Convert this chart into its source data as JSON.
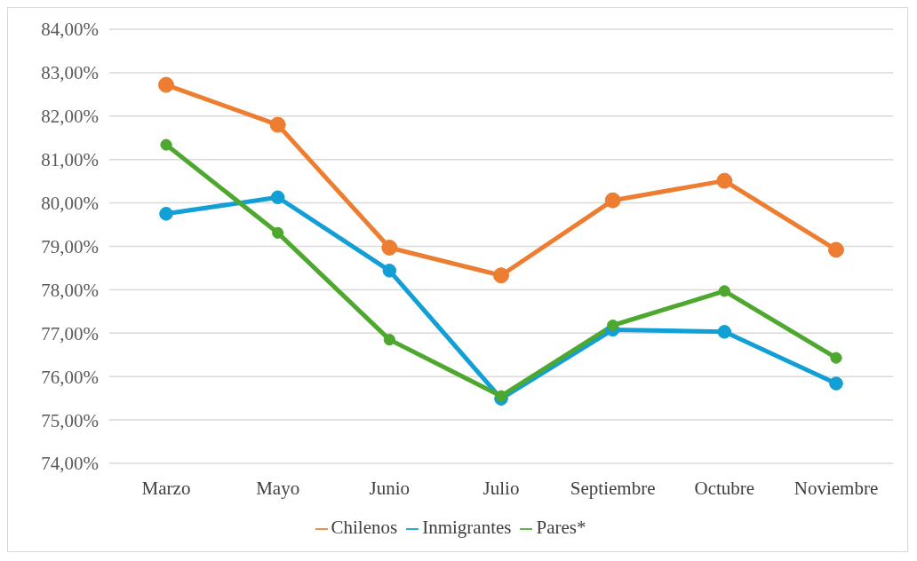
{
  "chart_data": {
    "type": "line",
    "categories": [
      "Marzo",
      "Mayo",
      "Junio",
      "Julio",
      "Septiembre",
      "Octubre",
      "Noviembre"
    ],
    "series": [
      {
        "name": "Chilenos",
        "color": "#ed7d31",
        "values": [
          82.72,
          81.8,
          78.97,
          78.33,
          80.06,
          80.51,
          78.92
        ]
      },
      {
        "name": "Inmigrantes",
        "color": "#119fd6",
        "values": [
          79.75,
          80.13,
          78.44,
          75.49,
          77.08,
          77.03,
          75.84
        ]
      },
      {
        "name": "Pares*",
        "color": "#4ea72e",
        "values": [
          81.34,
          79.31,
          76.85,
          75.55,
          77.18,
          77.97,
          76.43
        ]
      }
    ],
    "ylim": [
      74,
      84
    ],
    "yticks": [
      {
        "value": 74,
        "label": "74,00%"
      },
      {
        "value": 75,
        "label": "75,00%"
      },
      {
        "value": 76,
        "label": "76,00%"
      },
      {
        "value": 77,
        "label": "77,00%"
      },
      {
        "value": 78,
        "label": "78,00%"
      },
      {
        "value": 79,
        "label": "79,00%"
      },
      {
        "value": 80,
        "label": "80,00%"
      },
      {
        "value": 81,
        "label": "81,00%"
      },
      {
        "value": 82,
        "label": "82,00%"
      },
      {
        "value": 83,
        "label": "83,00%"
      },
      {
        "value": 84,
        "label": "84,00%"
      }
    ],
    "grid": "y",
    "legend": "bottom",
    "marker": "circle",
    "line_style": "solid"
  }
}
